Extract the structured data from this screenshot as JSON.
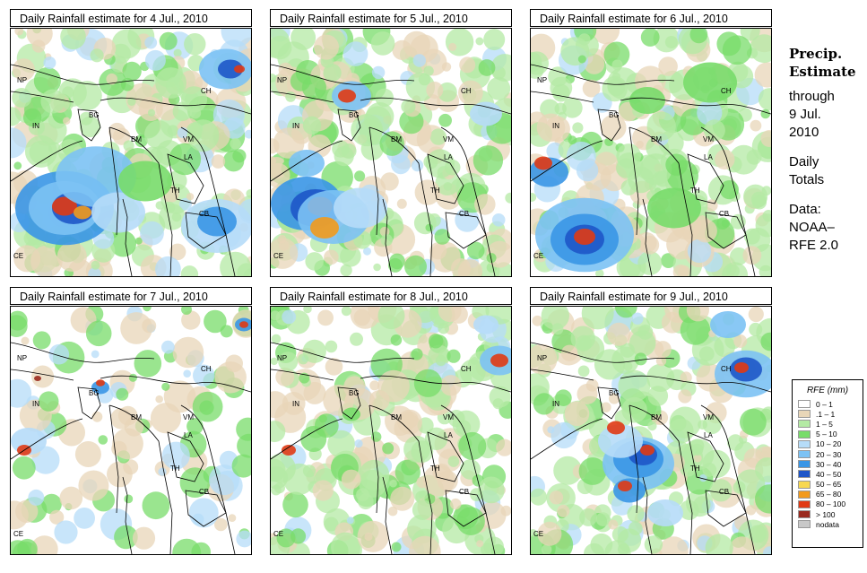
{
  "panels": [
    {
      "title": "Daily Rainfall estimate for  4 Jul., 2010",
      "theme": "wet-west"
    },
    {
      "title": "Daily Rainfall estimate for  5 Jul., 2010",
      "theme": "wet-bay"
    },
    {
      "title": "Daily Rainfall estimate for  6 Jul., 2010",
      "theme": "wet-southwest"
    },
    {
      "title": "Daily Rainfall estimate for  7 Jul., 2010",
      "theme": "dry"
    },
    {
      "title": "Daily Rainfall estimate for  8 Jul., 2010",
      "theme": "light"
    },
    {
      "title": "Daily Rainfall estimate for  9 Jul., 2010",
      "theme": "wet-center"
    }
  ],
  "map_labels": [
    "NP",
    "IN",
    "BG",
    "CH",
    "BM",
    "VM",
    "LA",
    "TH",
    "CB",
    "CE"
  ],
  "side": {
    "heading_line1": "Precip.",
    "heading_line2": "Estimate",
    "through": "through",
    "date_line1": "9 Jul.",
    "date_line2": "2010",
    "daily_line1": "Daily",
    "daily_line2": "Totals",
    "data_line1": "Data:",
    "data_line2": "NOAA–",
    "data_line3": "RFE 2.0"
  },
  "legend": {
    "title": "RFE (mm)",
    "items": [
      {
        "label": "0 – 1",
        "color": "#ffffff"
      },
      {
        "label": ".1 – 1",
        "color": "#e8d6b8"
      },
      {
        "label": "1 – 5",
        "color": "#b4eaa4"
      },
      {
        "label": "5 – 10",
        "color": "#78dc6a"
      },
      {
        "label": "10 – 20",
        "color": "#b6dcf8"
      },
      {
        "label": "20 – 30",
        "color": "#7cc2f4"
      },
      {
        "label": "30 – 40",
        "color": "#3a96e6"
      },
      {
        "label": "40 – 50",
        "color": "#1e56c8"
      },
      {
        "label": "50 – 65",
        "color": "#f8d850"
      },
      {
        "label": "65 – 80",
        "color": "#f29a1c"
      },
      {
        "label": "80 – 100",
        "color": "#e03a14"
      },
      {
        "label": "> 100",
        "color": "#9a2a1e"
      },
      {
        "label": "nodata",
        "color": "#c8c8c8"
      }
    ]
  }
}
